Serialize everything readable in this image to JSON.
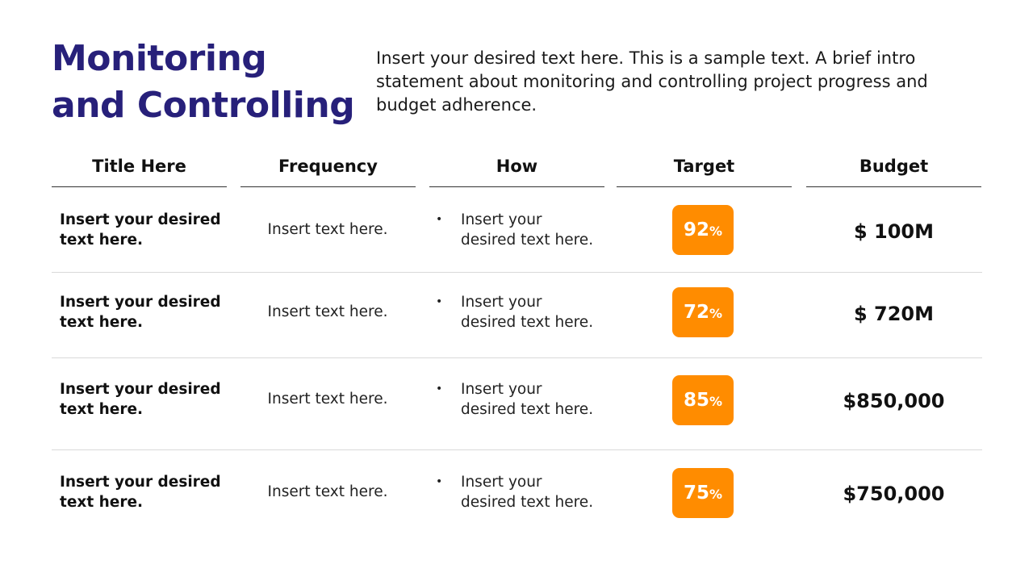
{
  "slide": {
    "title_line1": "Monitoring",
    "title_line2": "and Controlling",
    "intro": "Insert your desired text here. This is a sample text. A brief intro statement about monitoring and controlling project progress and budget adherence."
  },
  "table": {
    "headers": [
      "Title Here",
      "Frequency",
      "How",
      "Target",
      "Budget"
    ],
    "rows": [
      {
        "title_line1": "Insert your desired",
        "title_line2": "text here.",
        "frequency": "Insert text here.",
        "how_line1": "Insert your",
        "how_line2": "desired text here.",
        "target_value": "92",
        "target_unit": "%",
        "budget": "$ 100M"
      },
      {
        "title_line1": "Insert your desired",
        "title_line2": "text here.",
        "frequency": "Insert text here.",
        "how_line1": "Insert your",
        "how_line2": "desired text here.",
        "target_value": "72",
        "target_unit": "%",
        "budget": "$ 720M"
      },
      {
        "title_line1": "Insert your desired",
        "title_line2": "text here.",
        "frequency": "Insert text here.",
        "how_line1": "Insert your",
        "how_line2": "desired text here.",
        "target_value": "85",
        "target_unit": "%",
        "budget": "$850,000"
      },
      {
        "title_line1": "Insert your desired",
        "title_line2": "text here.",
        "frequency": "Insert text here.",
        "how_line1": "Insert your",
        "how_line2": "desired text here.",
        "target_value": "75",
        "target_unit": "%",
        "budget": "$750,000"
      }
    ]
  },
  "colors": {
    "title": "#27207a",
    "accent": "#ff8c00"
  }
}
